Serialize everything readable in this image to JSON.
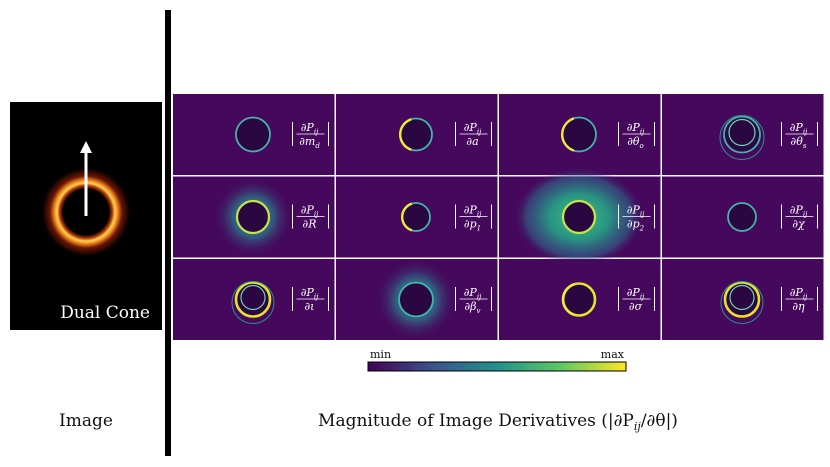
{
  "source_image": {
    "label": "Dual Cone",
    "caption": "Image"
  },
  "derivatives": {
    "caption": "Magnitude of Image Derivatives (|∂P",
    "caption_sub": "ij",
    "caption_end": "/∂θ|)",
    "panels": [
      {
        "param": "m",
        "param_sub": "d",
        "ring_radius": 17,
        "style": "thin"
      },
      {
        "param": "a",
        "param_sub": "",
        "ring_radius": 16,
        "style": "thin-left"
      },
      {
        "param": "θ",
        "param_sub": "o",
        "ring_radius": 17,
        "style": "thin-left"
      },
      {
        "param": "θ",
        "param_sub": "s",
        "ring_radius": 18,
        "style": "multi"
      },
      {
        "param": "R",
        "param_sub": "",
        "ring_radius": 16,
        "style": "halo"
      },
      {
        "param": "p",
        "param_sub": "1",
        "ring_radius": 14,
        "style": "thin-left"
      },
      {
        "param": "p",
        "param_sub": "2",
        "ring_radius": 16,
        "style": "big-halo"
      },
      {
        "param": "χ",
        "param_sub": "",
        "ring_radius": 14,
        "style": "thin"
      },
      {
        "param": "ι",
        "param_sub": "",
        "ring_radius": 17,
        "style": "bright-multi"
      },
      {
        "param": "β",
        "param_sub": "v",
        "ring_radius": 17,
        "style": "soft-halo"
      },
      {
        "param": "σ",
        "param_sub": "",
        "ring_radius": 16,
        "style": "bright-left"
      },
      {
        "param": "η",
        "param_sub": "",
        "ring_radius": 17,
        "style": "bright-multi"
      }
    ],
    "numerator": "∂P",
    "numerator_sub": "ij",
    "denominator_prefix": "∂"
  },
  "colorbar": {
    "min_label": "min",
    "max_label": "max",
    "colors": [
      "#440154",
      "#3b528b",
      "#21918c",
      "#5ec962",
      "#fde725"
    ]
  },
  "colors": {
    "panel_bg": "#45085c",
    "divider": "#ffffff",
    "left_bg": "#000000",
    "thick_bar": "#000000"
  }
}
